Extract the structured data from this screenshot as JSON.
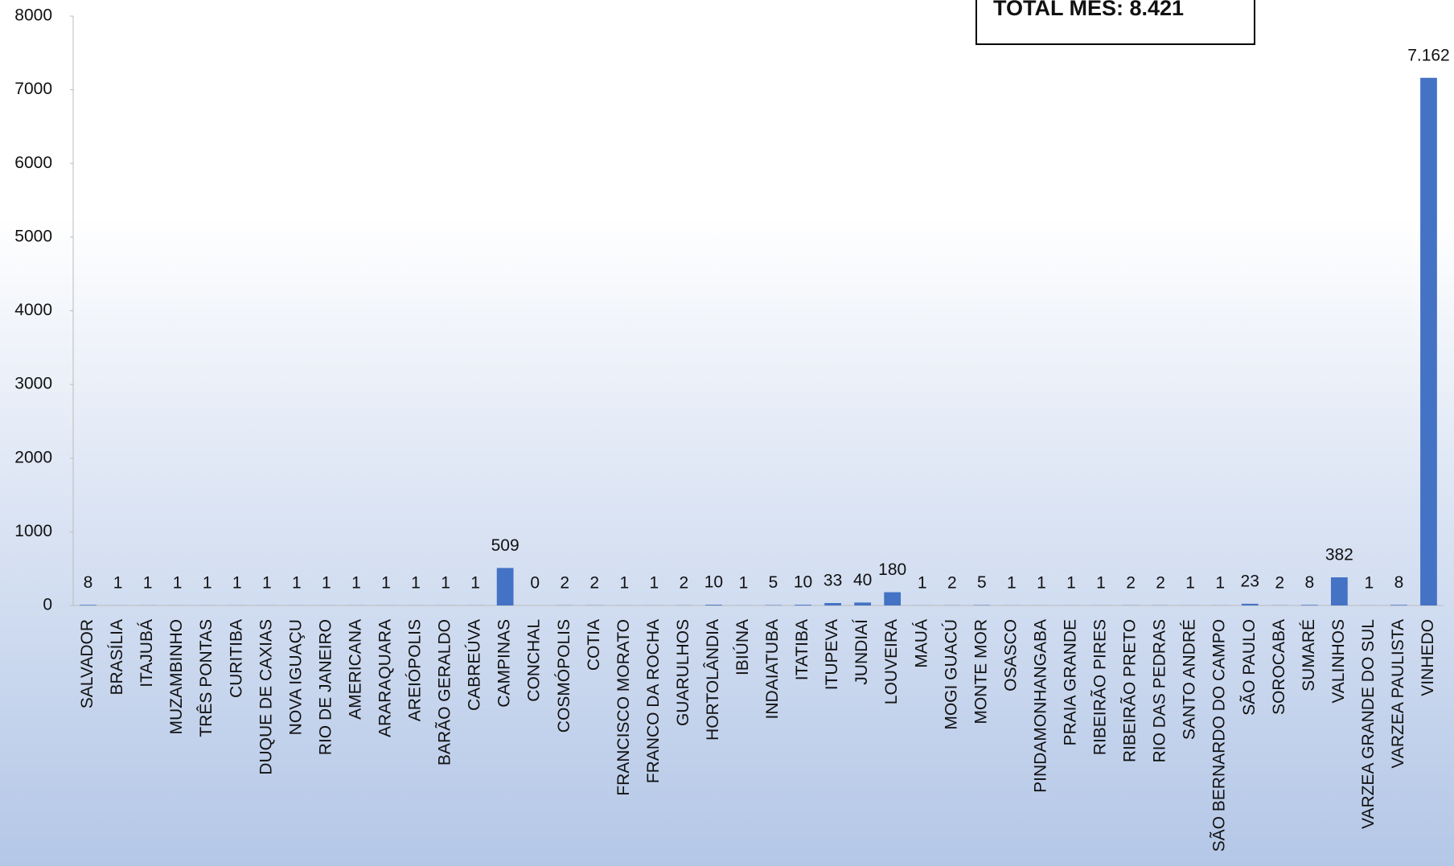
{
  "chart_data": {
    "type": "bar",
    "annotation": "TOTAL MÊS: 8.421",
    "categories": [
      "SALVADOR",
      "BRASÍLIA",
      "ITAJUBÁ",
      "MUZAMBINHO",
      "TRÊS PONTAS",
      "CURITIBA",
      "DUQUE DE CAXIAS",
      "NOVA IGUAÇU",
      "RIO DE JANEIRO",
      "AMERICANA",
      "ARARAQUARA",
      "AREIÓPOLIS",
      "BARÃO GERALDO",
      "CABREÚVA",
      "CAMPINAS",
      "CONCHAL",
      "COSMÓPOLIS",
      "COTIA",
      "FRANCISCO MORATO",
      "FRANCO DA ROCHA",
      "GUARULHOS",
      "HORTOLÂNDIA",
      "IBIÚNA",
      "INDAIATUBA",
      "ITATIBA",
      "ITUPEVA",
      "JUNDIAÍ",
      "LOUVEIRA",
      "MAUÁ",
      "MOGI GUACÚ",
      "MONTE MOR",
      "OSASCO",
      "PINDAMONHANGABA",
      "PRAIA GRANDE",
      "RIBEIRÃO PIRES",
      "RIBEIRÃO PRETO",
      "RIO DAS PEDRAS",
      "SANTO ANDRÉ",
      "SÃO BERNARDO DO CAMPO",
      "SÃO PAULO",
      "SOROCABA",
      "SUMARÉ",
      "VALINHOS",
      "VARZEA GRANDE DO SUL",
      "VARZEA PAULISTA",
      "VINHEDO"
    ],
    "values": [
      8,
      1,
      1,
      1,
      1,
      1,
      1,
      1,
      1,
      1,
      1,
      1,
      1,
      1,
      509,
      0,
      2,
      2,
      1,
      1,
      2,
      10,
      1,
      5,
      10,
      33,
      40,
      180,
      1,
      2,
      5,
      1,
      1,
      1,
      1,
      2,
      2,
      1,
      1,
      23,
      2,
      8,
      382,
      1,
      8,
      7162
    ],
    "value_labels": [
      "8",
      "1",
      "1",
      "1",
      "1",
      "1",
      "1",
      "1",
      "1",
      "1",
      "1",
      "1",
      "1",
      "1",
      "509",
      "0",
      "2",
      "2",
      "1",
      "1",
      "2",
      "10",
      "1",
      "5",
      "10",
      "33",
      "40",
      "180",
      "1",
      "2",
      "5",
      "1",
      "1",
      "1",
      "1",
      "2",
      "2",
      "1",
      "1",
      "23",
      "2",
      "8",
      "382",
      "1",
      "8",
      "7.162"
    ],
    "color": "#4472c4",
    "ylim": [
      0,
      8000
    ],
    "yticks": [
      0,
      1000,
      2000,
      3000,
      4000,
      5000,
      6000,
      7000,
      8000
    ]
  }
}
